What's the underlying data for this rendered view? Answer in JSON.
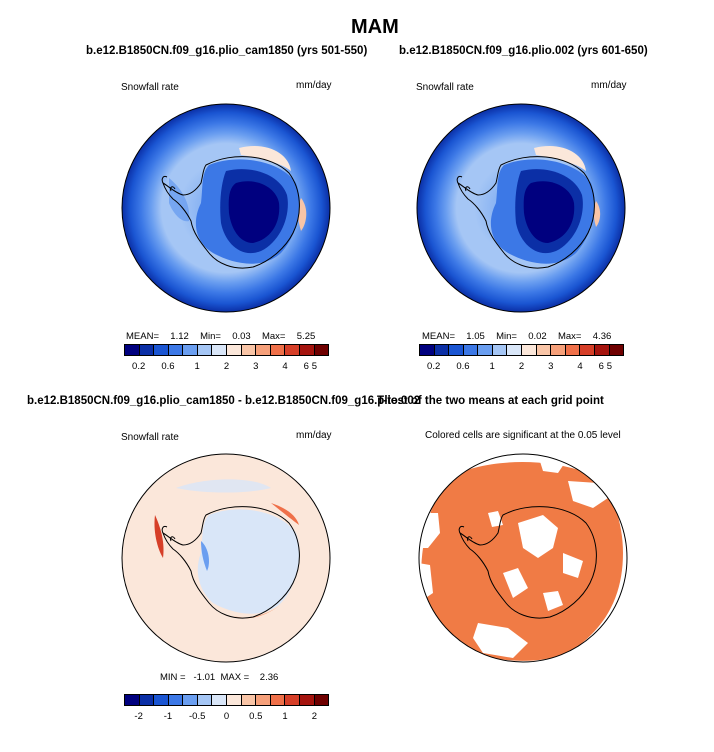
{
  "page_title": "MAM",
  "panels": [
    {
      "title": "b.e12.B1850CN.f09_g16.plio_cam1850 (yrs 501-550)",
      "left_label": "Snowfall rate",
      "right_label": "mm/day",
      "stats": {
        "mean_label": "MEAN=",
        "mean": "1.12",
        "min_label": "Min=",
        "min": "0.03",
        "max_label": "Max=",
        "max": "5.25"
      }
    },
    {
      "title": "b.e12.B1850CN.f09_g16.plio.002 (yrs 601-650)",
      "left_label": "Snowfall rate",
      "right_label": "mm/day",
      "stats": {
        "mean_label": "MEAN=",
        "mean": "1.05",
        "min_label": "Min=",
        "min": "0.02",
        "max_label": "Max=",
        "max": "4.36"
      }
    },
    {
      "title": "b.e12.B1850CN.f09_g16.plio_cam1850 - b.e12.B1850CN.f09_g16.plio.002",
      "left_label": "Snowfall rate",
      "right_label": "mm/day",
      "stats_text": "MIN =   -1.01  MAX =    2.36"
    },
    {
      "title": "T-test of the two means at each grid point",
      "subtitle": "Colored cells are significant at the 0.05 level"
    }
  ],
  "chart_data": [
    {
      "type": "heatmap",
      "projection": "south-polar-stereographic",
      "variable": "Snowfall rate",
      "units": "mm/day",
      "colorbar": {
        "ticks": [
          "0.2",
          "0.6",
          "1",
          "2",
          "3",
          "4",
          "5",
          "6"
        ],
        "colors": [
          "#00007f",
          "#0b2fa6",
          "#1a55d2",
          "#3c78e6",
          "#6a9ef0",
          "#a5c6f5",
          "#d9e6f8",
          "#fbe7da",
          "#f9c5a7",
          "#f6a07a",
          "#ef7049",
          "#d63f28",
          "#a5140e",
          "#6f0000"
        ]
      },
      "mean": 1.12,
      "min": 0.03,
      "max": 5.25
    },
    {
      "type": "heatmap",
      "projection": "south-polar-stereographic",
      "variable": "Snowfall rate",
      "units": "mm/day",
      "colorbar": {
        "ticks": [
          "0.2",
          "0.6",
          "1",
          "2",
          "3",
          "4",
          "5",
          "6"
        ],
        "colors": [
          "#00007f",
          "#0b2fa6",
          "#1a55d2",
          "#3c78e6",
          "#6a9ef0",
          "#a5c6f5",
          "#d9e6f8",
          "#fbe7da",
          "#f9c5a7",
          "#f6a07a",
          "#ef7049",
          "#d63f28",
          "#a5140e",
          "#6f0000"
        ]
      },
      "mean": 1.05,
      "min": 0.02,
      "max": 4.36
    },
    {
      "type": "heatmap",
      "projection": "south-polar-stereographic",
      "variable": "Snowfall rate difference",
      "units": "mm/day",
      "colorbar": {
        "ticks": [
          "-2",
          "-1",
          "-0.5",
          "0",
          "0.5",
          "1",
          "2"
        ],
        "colors": [
          "#00007f",
          "#0b2fa6",
          "#1a55d2",
          "#3c78e6",
          "#6a9ef0",
          "#a5c6f5",
          "#d9e6f8",
          "#fbe7da",
          "#f9c5a7",
          "#f6a07a",
          "#ef7049",
          "#d63f28",
          "#a5140e",
          "#6f0000"
        ]
      },
      "min": -1.01,
      "max": 2.36
    },
    {
      "type": "heatmap",
      "projection": "south-polar-stereographic",
      "variable": "significance mask",
      "significance_level": 0.05,
      "significant_color": "#f07b45"
    }
  ]
}
